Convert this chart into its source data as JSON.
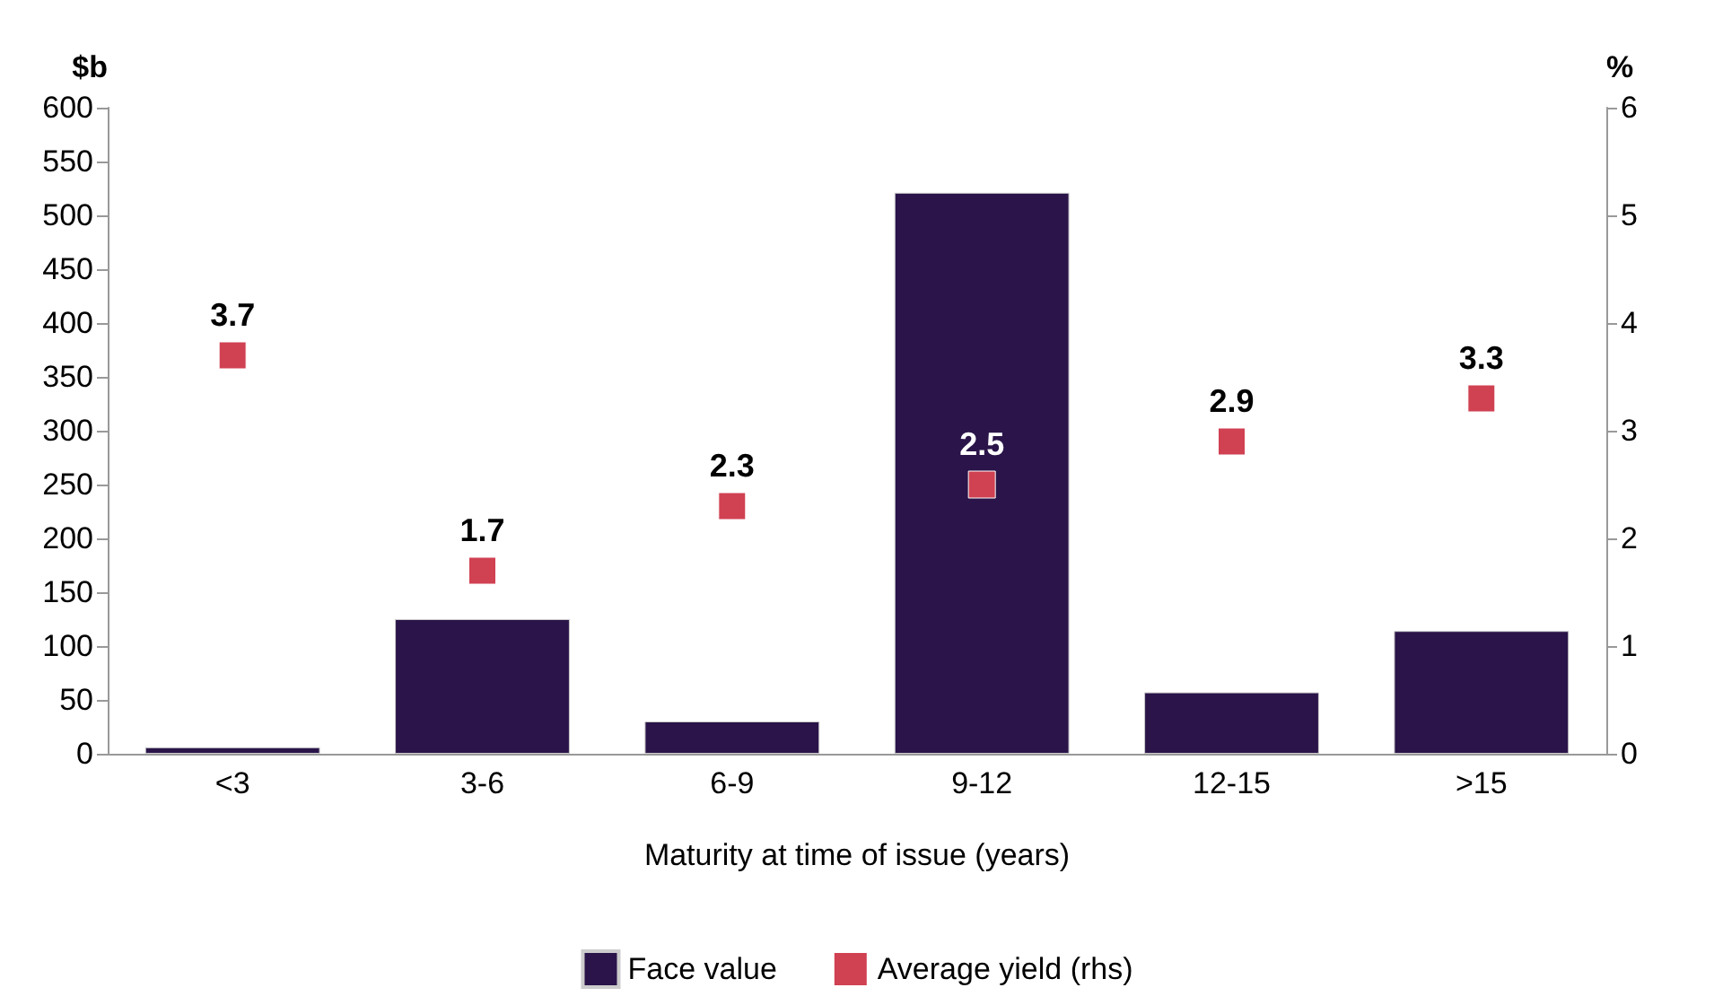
{
  "chart_data": {
    "type": "bar",
    "xlabel": "Maturity at time of issue (years)",
    "ylabel": "$b",
    "y2label": "%",
    "categories": [
      "<3",
      "3-6",
      "6-9",
      "9-12",
      "12-15",
      ">15"
    ],
    "series": [
      {
        "name": "Face value",
        "color": "#2a1449",
        "values": [
          6,
          125,
          30,
          521,
          57,
          114
        ]
      },
      {
        "name": "Average yield (rhs)",
        "type": "scatter",
        "axis": "y2",
        "marker": "square",
        "color": "#d04152",
        "values": [
          3.7,
          1.7,
          2.3,
          2.5,
          2.9,
          3.3
        ],
        "value_labels": [
          "3.7",
          "1.7",
          "2.3",
          "2.5",
          "2.9",
          "3.3"
        ]
      }
    ],
    "ylim": [
      0,
      600
    ],
    "yticks": [
      0,
      50,
      100,
      150,
      200,
      250,
      300,
      350,
      400,
      450,
      500,
      550,
      600
    ],
    "y2lim": [
      0,
      6
    ],
    "y2ticks": [
      0,
      1,
      2,
      3,
      4,
      5,
      6
    ],
    "grid": false,
    "legend": "bottom"
  }
}
